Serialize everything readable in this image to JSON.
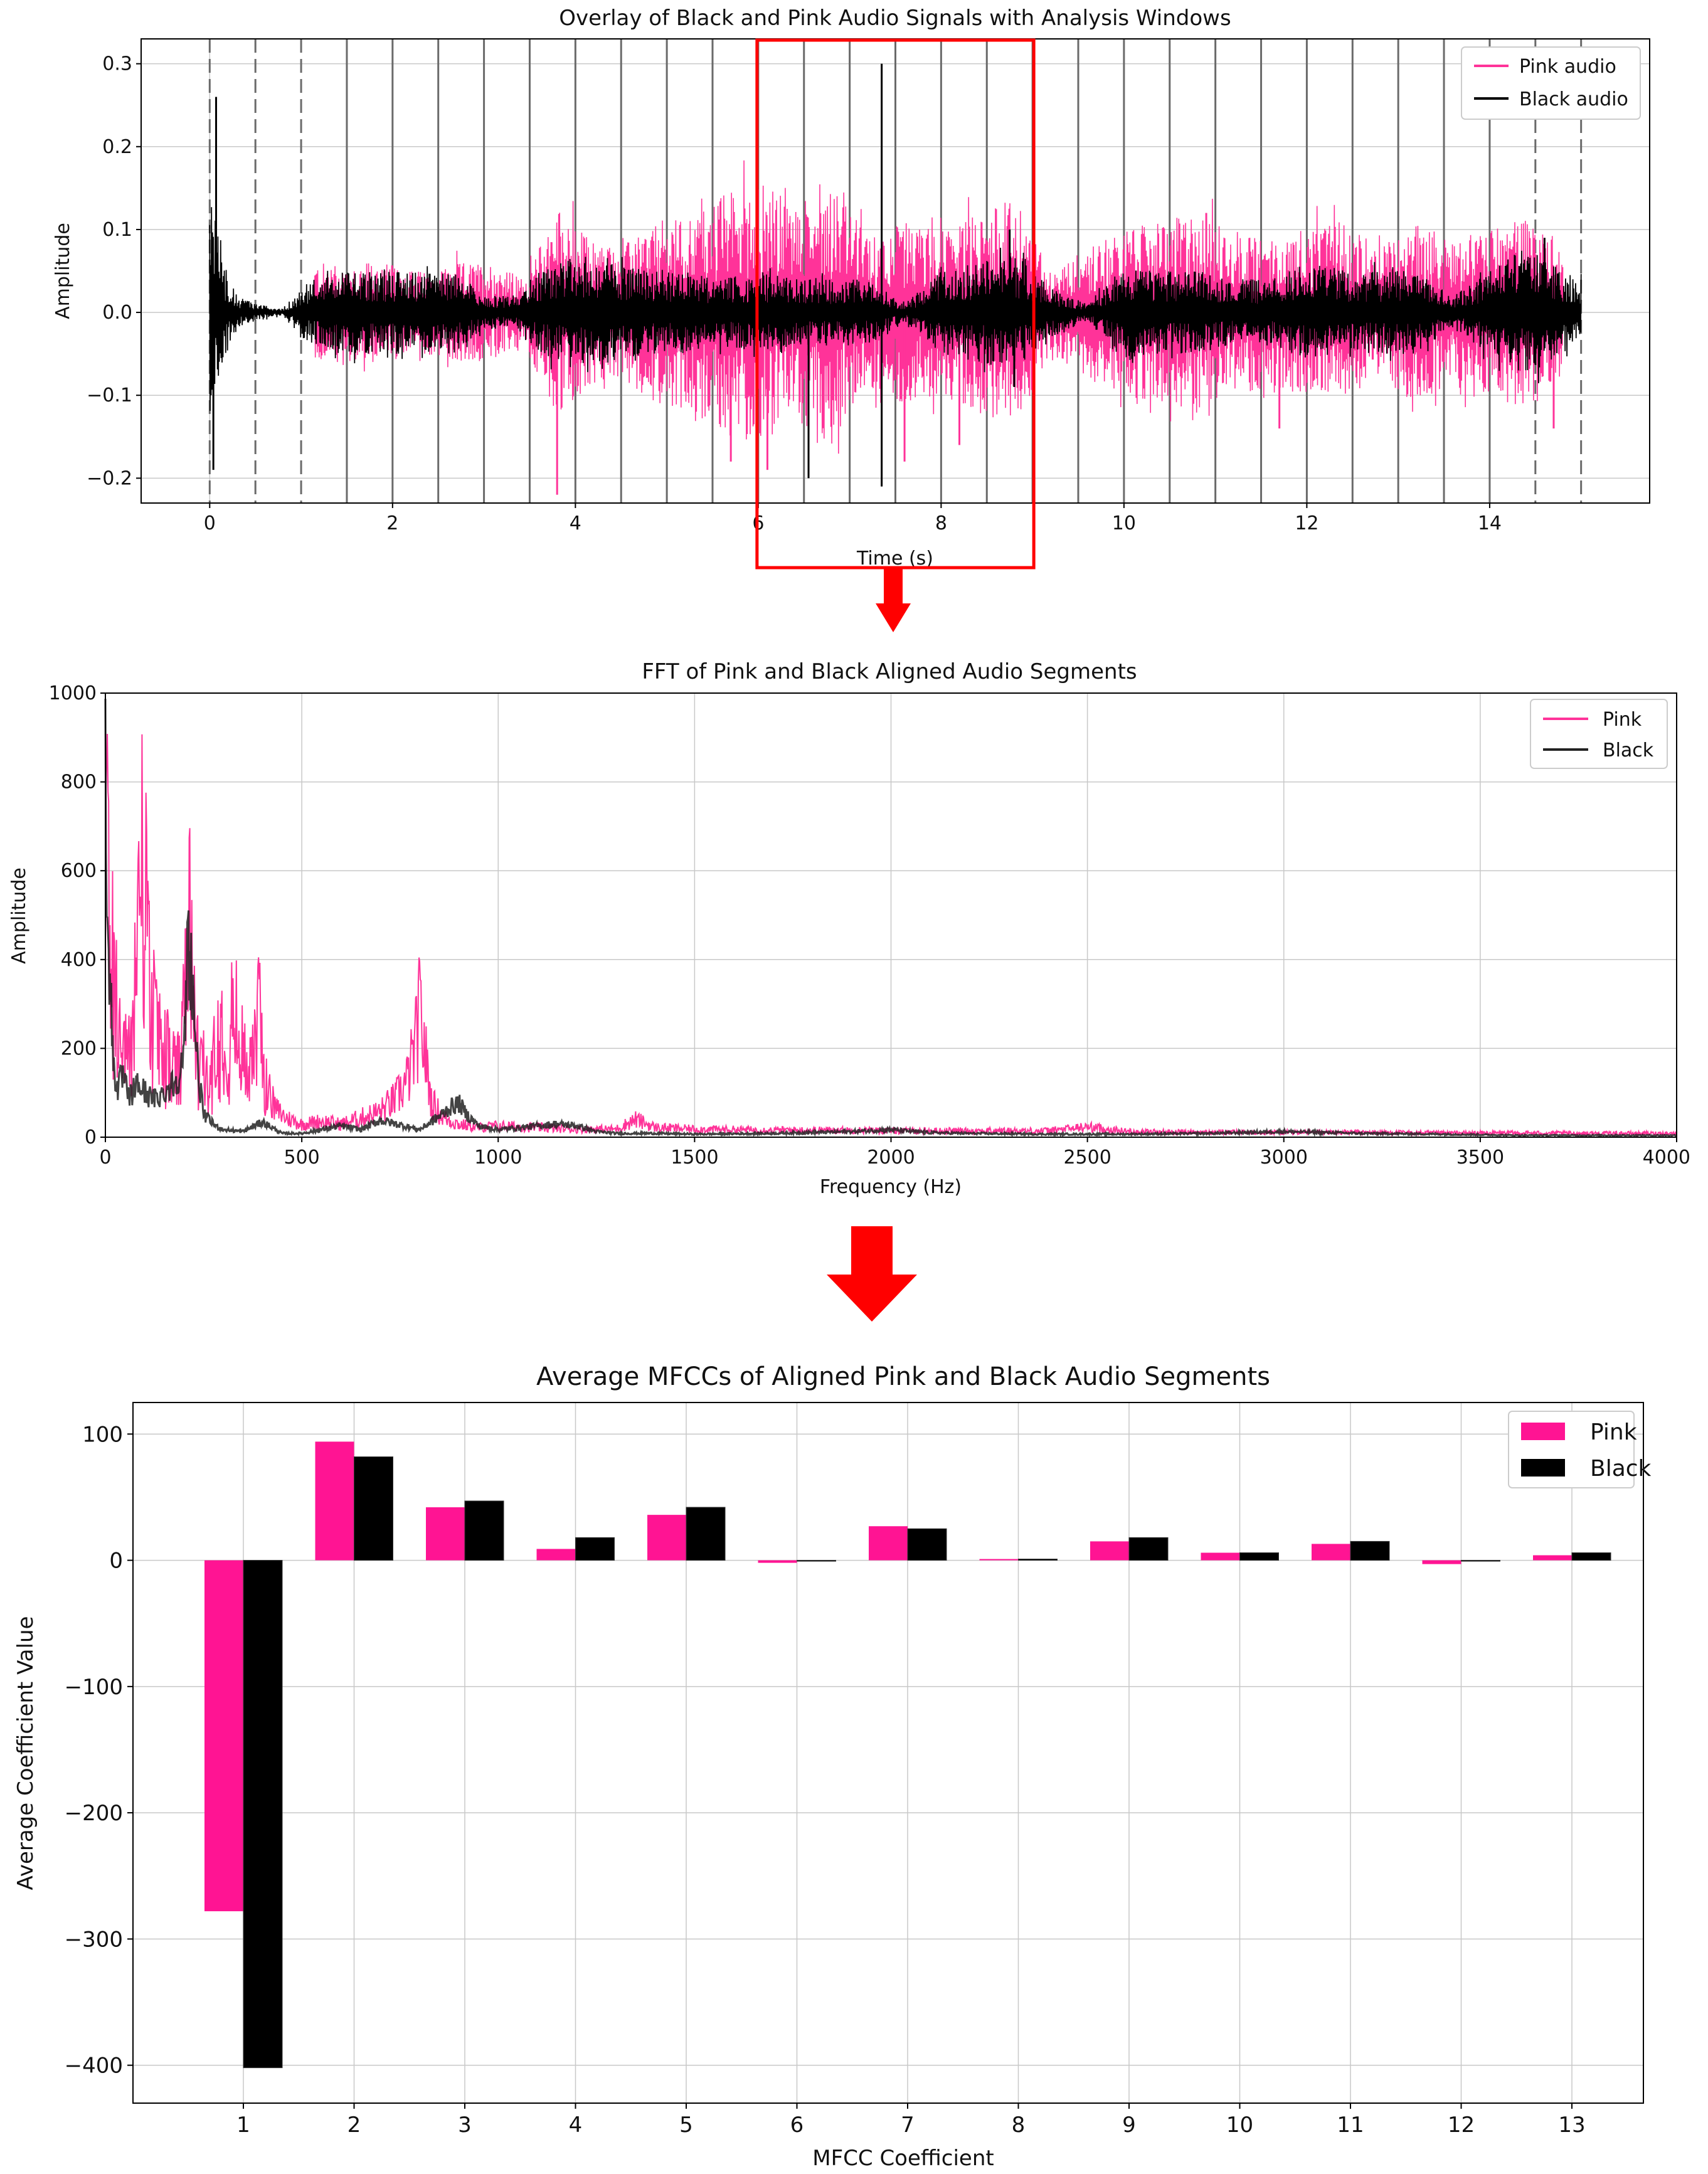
{
  "colors": {
    "pink": "#ff3399",
    "pink_bar": "#ff1493",
    "black": "#000000",
    "red": "#ff0000",
    "grid": "#b0b0b0"
  },
  "icons": {
    "down_arrow_1": "down-arrow-icon",
    "down_arrow_2": "down-arrow-icon"
  },
  "chart_data": [
    {
      "type": "line",
      "title": "Overlay of Black and Pink Audio Signals with Analysis Windows",
      "xlabel": "Time (s)",
      "ylabel": "Amplitude",
      "xlim": [
        -0.75,
        15.75
      ],
      "ylim": [
        -0.23,
        0.33
      ],
      "xticks": [
        0,
        2,
        4,
        6,
        8,
        10,
        12,
        14
      ],
      "xtick_labels": [
        "0",
        "2",
        "4",
        "6",
        "8",
        "10",
        "12",
        "14"
      ],
      "yticks": [
        -0.2,
        -0.1,
        0.0,
        0.1,
        0.2,
        0.3
      ],
      "ytick_labels": [
        "−0.2",
        "−0.1",
        "0.0",
        "0.1",
        "0.2",
        "0.3"
      ],
      "grid": true,
      "legend_position": "top-right",
      "analysis_window_lines": {
        "dashed": [
          0,
          0.5,
          1.0,
          14.5,
          15.0
        ],
        "solid": [
          1.5,
          2.0,
          2.5,
          3.0,
          3.5,
          4.0,
          4.5,
          5.0,
          5.5,
          6.0,
          6.5,
          7.0,
          7.5,
          8.0,
          8.5,
          9.0,
          9.5,
          10.0,
          10.5,
          11.0,
          11.5,
          12.0,
          12.5,
          13.0,
          13.5,
          14.0
        ]
      },
      "highlight_window": {
        "x_start": 6.0,
        "x_end": 9.0
      },
      "series": [
        {
          "name": "Pink audio",
          "color": "#ff3399",
          "x": [
            1.15,
            1.5,
            1.9,
            2.3,
            2.7,
            3.1,
            3.45,
            3.8,
            4.15,
            4.5,
            4.9,
            5.3,
            5.7,
            6.0,
            6.4,
            6.8,
            7.2,
            7.6,
            8.0,
            8.4,
            8.8,
            9.2,
            9.6,
            10.0,
            10.4,
            10.8,
            11.2,
            11.6,
            12.0,
            12.4,
            12.8,
            13.2,
            13.6,
            14.0,
            14.4,
            14.8
          ],
          "envelope": [
            0.06,
            0.06,
            0.06,
            0.05,
            0.06,
            0.06,
            0.04,
            0.13,
            0.09,
            0.08,
            0.11,
            0.12,
            0.15,
            0.16,
            0.13,
            0.16,
            0.09,
            0.11,
            0.1,
            0.12,
            0.14,
            0.05,
            0.08,
            0.1,
            0.11,
            0.12,
            0.1,
            0.09,
            0.1,
            0.11,
            0.08,
            0.11,
            0.09,
            0.1,
            0.12,
            0.08
          ],
          "spikes": [
            {
              "x": 3.8,
              "y": -0.22
            },
            {
              "x": 5.7,
              "y": -0.18
            },
            {
              "x": 6.1,
              "y": -0.19
            },
            {
              "x": 7.6,
              "y": -0.18
            },
            {
              "x": 8.2,
              "y": -0.16
            },
            {
              "x": 11.7,
              "y": -0.14
            },
            {
              "x": 14.7,
              "y": -0.14
            },
            {
              "x": 10.9,
              "y": 0.12
            }
          ]
        },
        {
          "name": "Black audio",
          "color": "#000000",
          "x": [
            0.0,
            0.05,
            0.15,
            0.3,
            0.5,
            0.8,
            1.1,
            1.5,
            1.9,
            2.3,
            2.7,
            3.0,
            3.3,
            3.6,
            4.0,
            4.4,
            4.8,
            5.2,
            5.6,
            6.0,
            6.4,
            6.8,
            7.2,
            7.6,
            8.0,
            8.4,
            8.8,
            9.2,
            9.6,
            10.0,
            10.4,
            10.8,
            11.2,
            11.6,
            12.0,
            12.4,
            12.8,
            13.2,
            13.6,
            14.0,
            14.4,
            14.8,
            15.0
          ],
          "envelope": [
            0.15,
            0.12,
            0.06,
            0.02,
            0.01,
            0.005,
            0.04,
            0.05,
            0.05,
            0.05,
            0.05,
            0.02,
            0.02,
            0.05,
            0.07,
            0.06,
            0.05,
            0.05,
            0.04,
            0.05,
            0.04,
            0.04,
            0.04,
            0.01,
            0.05,
            0.06,
            0.07,
            0.03,
            0.01,
            0.06,
            0.05,
            0.05,
            0.04,
            0.04,
            0.06,
            0.05,
            0.05,
            0.05,
            0.02,
            0.05,
            0.08,
            0.05,
            0.04
          ],
          "spikes": [
            {
              "x": 0.07,
              "y": 0.26
            },
            {
              "x": 0.04,
              "y": -0.19
            },
            {
              "x": 6.55,
              "y": -0.2
            },
            {
              "x": 7.35,
              "y": 0.3
            },
            {
              "x": 7.35,
              "y": -0.21
            },
            {
              "x": 8.75,
              "y": 0.1
            },
            {
              "x": 8.8,
              "y": -0.09
            },
            {
              "x": 14.6,
              "y": 0.09
            }
          ]
        }
      ]
    },
    {
      "type": "line",
      "title": "FFT of Pink and Black Aligned Audio Segments",
      "xlabel": "Frequency (Hz)",
      "ylabel": "Amplitude",
      "xlim": [
        0,
        4000
      ],
      "ylim": [
        0,
        1000
      ],
      "xticks": [
        0,
        500,
        1000,
        1500,
        2000,
        2500,
        3000,
        3500,
        4000
      ],
      "xtick_labels": [
        "0",
        "500",
        "1000",
        "1500",
        "2000",
        "2500",
        "3000",
        "3500",
        "4000"
      ],
      "yticks": [
        0,
        200,
        400,
        600,
        800,
        1000
      ],
      "ytick_labels": [
        "0",
        "200",
        "400",
        "600",
        "800",
        "1000"
      ],
      "grid": true,
      "legend_position": "top-right",
      "series": [
        {
          "name": "Pink",
          "color": "#ff3399",
          "x": [
            0,
            5,
            15,
            25,
            40,
            55,
            70,
            85,
            95,
            105,
            115,
            130,
            150,
            170,
            190,
            205,
            215,
            225,
            240,
            260,
            285,
            300,
            315,
            330,
            345,
            360,
            380,
            395,
            410,
            430,
            460,
            500,
            550,
            600,
            650,
            700,
            740,
            770,
            790,
            800,
            815,
            830,
            860,
            900,
            950,
            1000,
            1100,
            1200,
            1300,
            1350,
            1400,
            1500,
            1700,
            1900,
            2000,
            2200,
            2400,
            2500,
            2600,
            2800,
            3000,
            3200,
            3400,
            3600,
            3800,
            4000
          ],
          "y": [
            1000,
            980,
            700,
            500,
            350,
            250,
            400,
            850,
            1000,
            700,
            450,
            380,
            300,
            250,
            220,
            520,
            730,
            380,
            280,
            180,
            320,
            430,
            360,
            420,
            300,
            260,
            380,
            400,
            180,
            90,
            60,
            40,
            50,
            40,
            60,
            80,
            120,
            180,
            290,
            390,
            250,
            110,
            60,
            40,
            30,
            35,
            30,
            25,
            25,
            55,
            30,
            25,
            22,
            22,
            20,
            20,
            20,
            32,
            18,
            15,
            15,
            15,
            13,
            13,
            12,
            12
          ]
        },
        {
          "name": "Black",
          "color": "#222222",
          "x": [
            0,
            5,
            10,
            20,
            30,
            45,
            60,
            80,
            100,
            120,
            140,
            160,
            180,
            200,
            210,
            220,
            235,
            250,
            280,
            300,
            350,
            400,
            450,
            500,
            600,
            650,
            700,
            800,
            850,
            880,
            900,
            920,
            950,
            1000,
            1050,
            1100,
            1150,
            1200,
            1250,
            1300,
            1400,
            1500,
            1700,
            1900,
            2000,
            2100,
            2200,
            2400,
            2600,
            2800,
            3000,
            3200,
            3400,
            3600,
            3800,
            4000
          ],
          "y": [
            960,
            700,
            450,
            200,
            130,
            160,
            100,
            140,
            120,
            100,
            110,
            130,
            150,
            200,
            540,
            430,
            180,
            60,
            30,
            20,
            15,
            40,
            10,
            10,
            30,
            20,
            45,
            20,
            55,
            80,
            90,
            60,
            30,
            20,
            25,
            30,
            35,
            30,
            15,
            10,
            10,
            8,
            10,
            15,
            20,
            12,
            10,
            8,
            8,
            10,
            15,
            10,
            8,
            5,
            5,
            5
          ]
        }
      ]
    },
    {
      "type": "bar",
      "title": "Average MFCCs of Aligned Pink and Black Audio Segments",
      "xlabel": "MFCC Coefficient",
      "ylabel": "Average Coefficient Value",
      "categories": [
        "1",
        "2",
        "3",
        "4",
        "5",
        "6",
        "7",
        "8",
        "9",
        "10",
        "11",
        "12",
        "13"
      ],
      "ylim": [
        -430,
        125
      ],
      "yticks": [
        100,
        0,
        -100,
        -200,
        -300,
        -400
      ],
      "ytick_labels": [
        "100",
        "0",
        "−100",
        "−200",
        "−300",
        "−400"
      ],
      "grid": true,
      "legend_position": "top-right",
      "series": [
        {
          "name": "Pink",
          "color": "#ff1493",
          "values": [
            -278,
            94,
            42,
            9,
            36,
            -2,
            27,
            1,
            15,
            6,
            13,
            -3,
            4
          ]
        },
        {
          "name": "Black",
          "color": "#000000",
          "values": [
            -402,
            82,
            47,
            18,
            42,
            0,
            25,
            1,
            18,
            6,
            15,
            0,
            6
          ]
        }
      ]
    }
  ]
}
